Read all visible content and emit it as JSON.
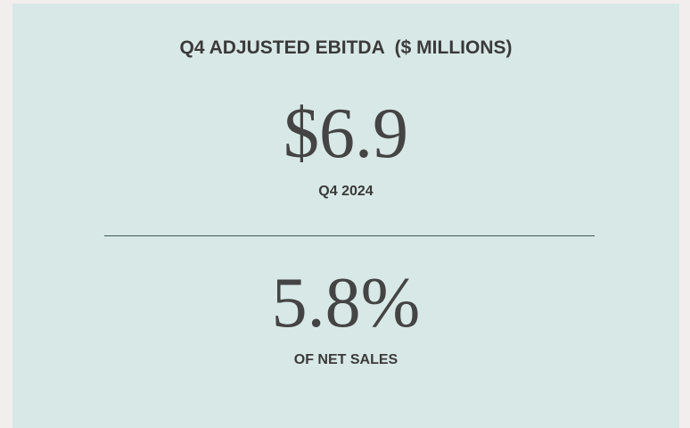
{
  "title": "Q4 ADJUSTED EBITDA  ($ MILLIONS)",
  "metrics": [
    {
      "value": "$6.9",
      "label": "Q4 2024"
    },
    {
      "value": "5.8%",
      "label": "OF NET SALES"
    }
  ]
}
